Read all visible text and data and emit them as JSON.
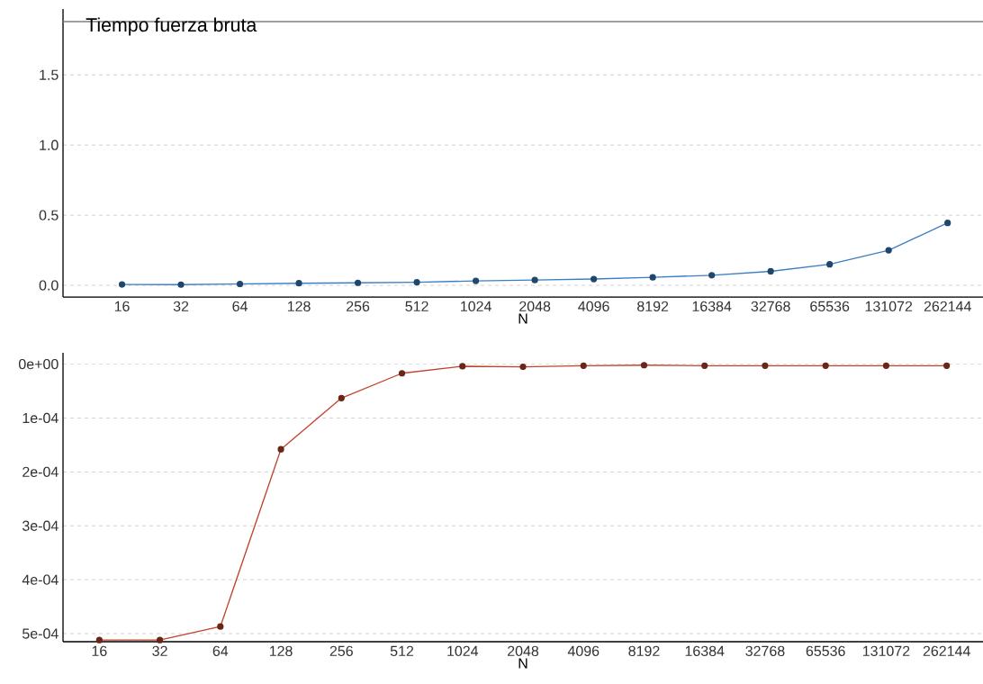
{
  "chart_data": [
    {
      "type": "line",
      "title": "Tiempo fuerza bruta",
      "xlabel": "N",
      "categories": [
        "16",
        "32",
        "64",
        "128",
        "256",
        "512",
        "1024",
        "2048",
        "4096",
        "8192",
        "16384",
        "32768",
        "65536",
        "131072",
        "262144"
      ],
      "series": [
        {
          "color": "#3a7fc4",
          "values": [
            0.006,
            0.005,
            0.01,
            0.015,
            0.018,
            0.022,
            0.032,
            0.038,
            0.045,
            0.057,
            0.072,
            0.1,
            0.15,
            0.25,
            0.445
          ]
        }
      ],
      "ylim": [
        -0.083,
        1.97
      ],
      "yticks": [
        {
          "value": 0,
          "label": "0.0"
        },
        {
          "value": 0.5,
          "label": "0.5"
        },
        {
          "value": 1,
          "label": "1.0"
        },
        {
          "value": 1.5,
          "label": "1.5"
        }
      ],
      "ref_lines": [
        {
          "axis": "y",
          "value": 1.88,
          "color": "#808080"
        }
      ],
      "grid": "y",
      "marker": "circle"
    },
    {
      "type": "line",
      "xlabel": "N",
      "categories": [
        "16",
        "32",
        "64",
        "128",
        "256",
        "512",
        "1024",
        "2048",
        "4096",
        "8192",
        "16384",
        "32768",
        "65536",
        "131072",
        "262144"
      ],
      "series": [
        {
          "color": "#c0432e",
          "values": [
            0.000512,
            0.000512,
            0.000487,
            0.000158,
            6.3e-05,
            1.7e-05,
            4e-06,
            5e-06,
            3e-06,
            2e-06,
            3e-06,
            3e-06,
            3e-06,
            3e-06,
            3e-06
          ]
        }
      ],
      "ylim": [
        0.000515,
        -2.1e-05
      ],
      "yticks": [
        {
          "value": 0,
          "label": "0e+00"
        },
        {
          "value": 0.0001,
          "label": "1e-04"
        },
        {
          "value": 0.0002,
          "label": "2e-04"
        },
        {
          "value": 0.0003,
          "label": "3e-04"
        },
        {
          "value": 0.0004,
          "label": "4e-04"
        },
        {
          "value": 0.0005,
          "label": "5e-04"
        }
      ],
      "grid": "y",
      "marker": "circle"
    }
  ]
}
